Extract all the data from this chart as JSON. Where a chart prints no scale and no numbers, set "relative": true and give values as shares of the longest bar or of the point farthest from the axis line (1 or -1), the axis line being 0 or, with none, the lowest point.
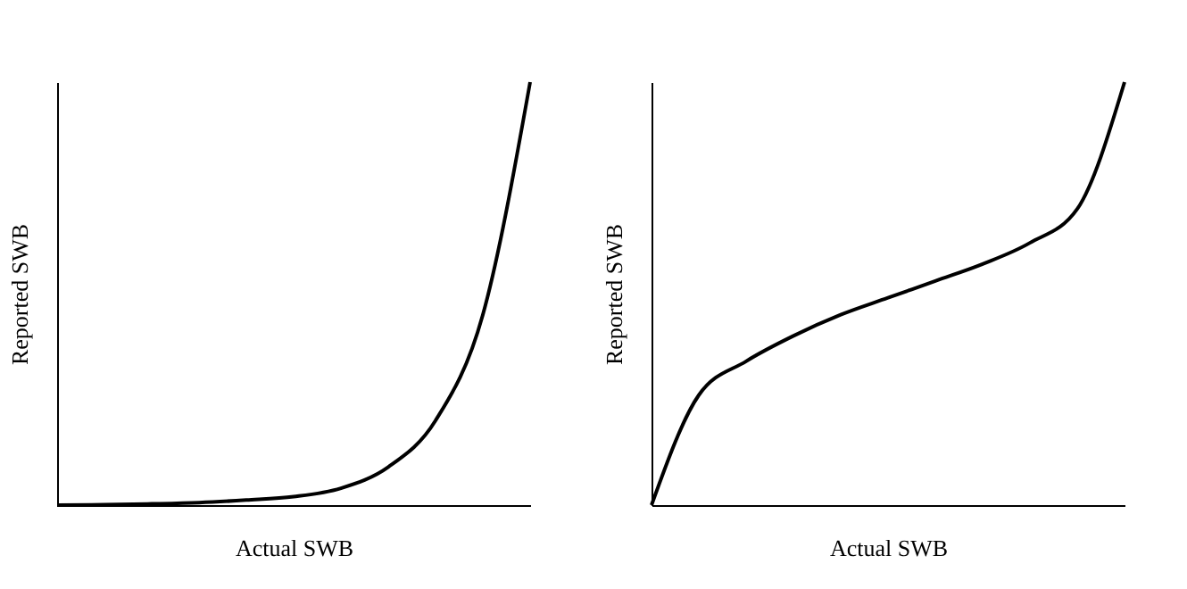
{
  "chart_data": [
    {
      "type": "line",
      "relative": true,
      "xlabel": "Actual SWB",
      "ylabel": "Reported SWB",
      "categories": [
        null,
        null,
        null,
        null,
        null,
        null,
        null,
        null,
        null,
        null,
        null
      ],
      "tick_labels": false,
      "grid": false,
      "series": [
        {
          "color": "#000000",
          "values": [
            0,
            0.001,
            0.003,
            0.006,
            0.012,
            0.02,
            0.04,
            0.09,
            0.2,
            0.45,
            1
          ]
        }
      ]
    },
    {
      "type": "line",
      "relative": true,
      "xlabel": "Actual SWB",
      "ylabel": "Reported SWB",
      "categories": [
        null,
        null,
        null,
        null,
        null,
        null,
        null,
        null,
        null,
        null,
        null
      ],
      "tick_labels": false,
      "grid": false,
      "series": [
        {
          "color": "#000000",
          "values": [
            0,
            0.26,
            0.34,
            0.4,
            0.45,
            0.49,
            0.53,
            0.57,
            0.62,
            0.7,
            1
          ]
        }
      ]
    }
  ]
}
